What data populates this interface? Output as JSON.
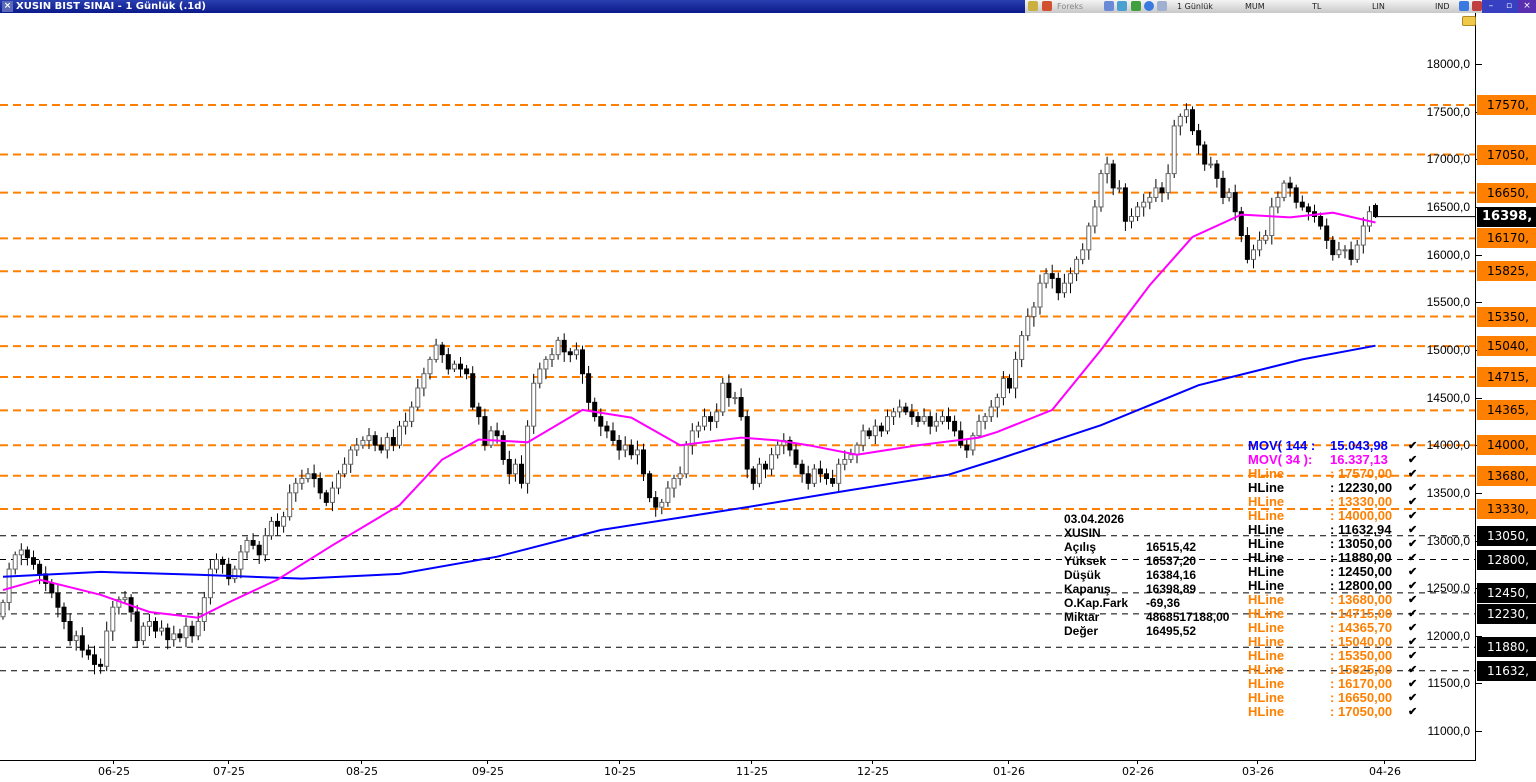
{
  "window": {
    "title": "XUSIN BIST SINAI - 1 Günlük (.1d)",
    "toolbar": {
      "period": "1 Günlük",
      "chart_style": "MUM",
      "currency": "TL",
      "scale": "LIN",
      "indicators": "IND",
      "brand": "Foreks"
    }
  },
  "info_box": {
    "date": "03.04.2026",
    "symbol": "XUSIN",
    "rows": [
      {
        "label": "Açılış",
        "value": "16515,42"
      },
      {
        "label": "Yüksek",
        "value": "16537,20"
      },
      {
        "label": "Düşük",
        "value": "16384,16"
      },
      {
        "label": "Kapanış",
        "value": "16398,89"
      },
      {
        "label": "O.Kap.Fark",
        "value": "-69,36"
      },
      {
        "label": "Miktar",
        "value": "4868517188,00"
      },
      {
        "label": "Değer",
        "value": "16495,52"
      }
    ]
  },
  "legend": [
    {
      "name": "MOV( 144 :",
      "value": "15.043,98",
      "color": "#0000ff"
    },
    {
      "name": "MOV( 34 ):",
      "value": "16.337,13",
      "color": "#ff00ff"
    },
    {
      "name": "HLine",
      "value": ": 17570,00",
      "color": "#ff8000"
    },
    {
      "name": "HLine",
      "value": ": 12230,00",
      "color": "#000000"
    },
    {
      "name": "HLine",
      "value": ": 13330,00",
      "color": "#ff8000"
    },
    {
      "name": "HLine",
      "value": ": 14000,00",
      "color": "#ff8000"
    },
    {
      "name": "HLine",
      "value": ": 11632,94",
      "color": "#000000"
    },
    {
      "name": "HLine",
      "value": ": 13050,00",
      "color": "#000000"
    },
    {
      "name": "HLine",
      "value": ": 11880,00",
      "color": "#000000"
    },
    {
      "name": "HLine",
      "value": ": 12450,00",
      "color": "#000000"
    },
    {
      "name": "HLine",
      "value": ": 12800,00",
      "color": "#000000"
    },
    {
      "name": "HLine",
      "value": ": 13680,00",
      "color": "#ff8000"
    },
    {
      "name": "HLine",
      "value": ": 14715,00",
      "color": "#ff8000"
    },
    {
      "name": "HLine",
      "value": ": 14365,70",
      "color": "#ff8000"
    },
    {
      "name": "HLine",
      "value": ": 15040,00",
      "color": "#ff8000"
    },
    {
      "name": "HLine",
      "value": ": 15350,00",
      "color": "#ff8000"
    },
    {
      "name": "HLine",
      "value": ": 15825,00",
      "color": "#ff8000"
    },
    {
      "name": "HLine",
      "value": ": 16170,00",
      "color": "#ff8000"
    },
    {
      "name": "HLine",
      "value": ": 16650,00",
      "color": "#ff8000"
    },
    {
      "name": "HLine",
      "value": ": 17050,00",
      "color": "#ff8000"
    }
  ],
  "legend_check": "✔",
  "chart_data": {
    "type": "candlestick",
    "title": "XUSIN BIST SINAI - 1 Günlük (.1d)",
    "ylim": [
      10800,
      18300
    ],
    "y_ticks": [
      "18000,0",
      "17500,0",
      "17000,0",
      "16500,0",
      "16000,0",
      "15500,0",
      "15000,0",
      "14500,0",
      "14000,0",
      "13500,0",
      "13000,0",
      "12500,0",
      "12000,0",
      "11500,0",
      "11000,0"
    ],
    "y_tick_values": [
      18000,
      17500,
      17000,
      16500,
      16000,
      15500,
      15000,
      14500,
      14000,
      13500,
      13000,
      12500,
      12000,
      11500,
      11000
    ],
    "x_ticks": [
      "06-25",
      "07-25",
      "08-25",
      "09-25",
      "10-25",
      "11-25",
      "12-25",
      "01-26",
      "02-26",
      "03-26",
      "04-26"
    ],
    "last_candle": {
      "open": 16515.42,
      "high": 16537.2,
      "low": 16384.16,
      "close": 16398.89
    },
    "last_price_label": "16398,",
    "closes": [
      12350,
      12700,
      12850,
      12900,
      12820,
      12750,
      12650,
      12550,
      12450,
      12300,
      12150,
      11950,
      12000,
      11850,
      11800,
      11700,
      11680,
      12050,
      12300,
      12380,
      12400,
      12250,
      11950,
      12100,
      12150,
      12050,
      12080,
      11960,
      12020,
      11980,
      12100,
      12000,
      12150,
      12400,
      12700,
      12800,
      12750,
      12600,
      12700,
      12880,
      13000,
      12950,
      12850,
      13050,
      13200,
      13150,
      13250,
      13500,
      13600,
      13650,
      13700,
      13650,
      13500,
      13400,
      13550,
      13700,
      13800,
      13950,
      14000,
      14050,
      14100,
      14000,
      13950,
      14080,
      14000,
      14200,
      14250,
      14400,
      14600,
      14750,
      14900,
      15050,
      14950,
      14800,
      14850,
      14800,
      14750,
      14400,
      14300,
      14000,
      14150,
      14100,
      13850,
      13700,
      13800,
      13600,
      14200,
      14650,
      14800,
      14900,
      14950,
      15100,
      14980,
      14950,
      15000,
      14750,
      14450,
      14300,
      14200,
      14150,
      14050,
      13950,
      14000,
      13900,
      13950,
      13700,
      13450,
      13350,
      13400,
      13550,
      13650,
      13700,
      14000,
      14150,
      14200,
      14300,
      14250,
      14350,
      14650,
      14500,
      14500,
      14300,
      13750,
      13600,
      13800,
      13750,
      13900,
      14000,
      14050,
      13950,
      13800,
      13700,
      13600,
      13750,
      13700,
      13650,
      13600,
      13800,
      13850,
      13900,
      14000,
      14150,
      14100,
      14200,
      14150,
      14300,
      14350,
      14400,
      14350,
      14300,
      14250,
      14300,
      14200,
      14250,
      14300,
      14250,
      14150,
      14000,
      13950,
      14100,
      14250,
      14300,
      14400,
      14500,
      14700,
      14600,
      14900,
      15150,
      15350,
      15450,
      15700,
      15800,
      15750,
      15600,
      15700,
      15800,
      15950,
      16050,
      16300,
      16500,
      16850,
      16950,
      16700,
      16700,
      16350,
      16400,
      16500,
      16550,
      16600,
      16700,
      16650,
      16850,
      17350,
      17450,
      17520,
      17300,
      17150,
      16950,
      16950,
      16800,
      16600,
      16650,
      16450,
      16200,
      15950,
      16050,
      16150,
      16200,
      16500,
      16600,
      16750,
      16700,
      16550,
      16500,
      16450,
      16400,
      16300,
      16150,
      16000,
      16050,
      16050,
      15950,
      16100,
      16300,
      16450,
      16398.89
    ],
    "series": [
      {
        "name": "MOV( 144 )",
        "color": "#0000ff",
        "points": [
          [
            0,
            12620
          ],
          [
            16,
            12670
          ],
          [
            32,
            12640
          ],
          [
            49,
            12600
          ],
          [
            65,
            12650
          ],
          [
            81,
            12830
          ],
          [
            98,
            13110
          ],
          [
            111,
            13240
          ],
          [
            122,
            13350
          ],
          [
            139,
            13530
          ],
          [
            155,
            13690
          ],
          [
            163,
            13850
          ],
          [
            180,
            14210
          ],
          [
            196,
            14630
          ],
          [
            213,
            14900
          ],
          [
            225,
            15044
          ]
        ]
      },
      {
        "name": "MOV( 34 )",
        "color": "#ff00ff",
        "points": [
          [
            0,
            12480
          ],
          [
            6,
            12590
          ],
          [
            16,
            12430
          ],
          [
            24,
            12250
          ],
          [
            32,
            12190
          ],
          [
            37,
            12350
          ],
          [
            45,
            12590
          ],
          [
            54,
            12950
          ],
          [
            65,
            13370
          ],
          [
            72,
            13850
          ],
          [
            78,
            14060
          ],
          [
            86,
            14030
          ],
          [
            95,
            14370
          ],
          [
            103,
            14290
          ],
          [
            111,
            14000
          ],
          [
            121,
            14080
          ],
          [
            127,
            14050
          ],
          [
            132,
            14000
          ],
          [
            140,
            13900
          ],
          [
            150,
            14000
          ],
          [
            160,
            14080
          ],
          [
            163,
            14140
          ],
          [
            172,
            14370
          ],
          [
            180,
            15000
          ],
          [
            188,
            15680
          ],
          [
            195,
            16185
          ],
          [
            203,
            16420
          ],
          [
            211,
            16390
          ],
          [
            218,
            16440
          ],
          [
            225,
            16337
          ]
        ]
      }
    ],
    "hlines": [
      {
        "value": 17570,
        "label": "17570,",
        "color": "#ff8000"
      },
      {
        "value": 17050,
        "label": "17050,",
        "color": "#ff8000"
      },
      {
        "value": 16650,
        "label": "16650,",
        "color": "#ff8000"
      },
      {
        "value": 16170,
        "label": "16170,",
        "color": "#ff8000"
      },
      {
        "value": 15825,
        "label": "15825,",
        "color": "#ff8000"
      },
      {
        "value": 15350,
        "label": "15350,",
        "color": "#ff8000"
      },
      {
        "value": 15040,
        "label": "15040,",
        "color": "#ff8000"
      },
      {
        "value": 14715,
        "label": "14715,",
        "color": "#ff8000"
      },
      {
        "value": 14365.7,
        "label": "14365,",
        "color": "#ff8000"
      },
      {
        "value": 14000,
        "label": "14000,",
        "color": "#ff8000"
      },
      {
        "value": 13680,
        "label": "13680,",
        "color": "#ff8000"
      },
      {
        "value": 13330,
        "label": "13330,",
        "color": "#ff8000"
      },
      {
        "value": 13050,
        "label": "13050,",
        "color": "#000000"
      },
      {
        "value": 12800,
        "label": "12800,",
        "color": "#000000"
      },
      {
        "value": 12450,
        "label": "12450,",
        "color": "#000000"
      },
      {
        "value": 12230,
        "label": "12230,",
        "color": "#000000"
      },
      {
        "value": 11880,
        "label": "11880,",
        "color": "#000000"
      },
      {
        "value": 11632.94,
        "label": "11632,",
        "color": "#000000"
      }
    ],
    "colors": {
      "up_body": "#ffffff",
      "down_body": "#000000",
      "orange_line": "#ff8000"
    }
  }
}
